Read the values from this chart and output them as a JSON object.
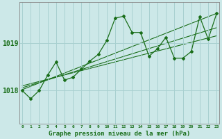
{
  "title": "Graphe pression niveau de la mer (hPa)",
  "background_color": "#cce8e8",
  "grid_color": "#a8d0d0",
  "line_color": "#1a6e1a",
  "x_labels": [
    0,
    1,
    2,
    3,
    4,
    5,
    6,
    7,
    8,
    9,
    10,
    11,
    12,
    13,
    14,
    15,
    16,
    17,
    18,
    19,
    20,
    21,
    22,
    23
  ],
  "y_ticks": [
    1018,
    1019
  ],
  "ylim": [
    1017.3,
    1019.85
  ],
  "xlim": [
    -0.3,
    23.3
  ],
  "main_series": [
    1018.0,
    1017.83,
    1018.0,
    1018.32,
    1018.6,
    1018.22,
    1018.28,
    1018.45,
    1018.62,
    1018.76,
    1019.05,
    1019.52,
    1019.56,
    1019.22,
    1019.22,
    1018.72,
    1018.88,
    1019.12,
    1018.68,
    1018.68,
    1018.82,
    1019.55,
    1019.08,
    1019.62
  ],
  "trend_line1_x": [
    0,
    23
  ],
  "trend_line1_y": [
    1018.02,
    1019.62
  ],
  "trend_line2_x": [
    0,
    23
  ],
  "trend_line2_y": [
    1018.06,
    1019.32
  ],
  "trend_line3_x": [
    0,
    23
  ],
  "trend_line3_y": [
    1018.1,
    1019.15
  ],
  "xlabel_fontsize": 6.5,
  "ytick_fontsize": 7,
  "xtick_fontsize": 4.5
}
